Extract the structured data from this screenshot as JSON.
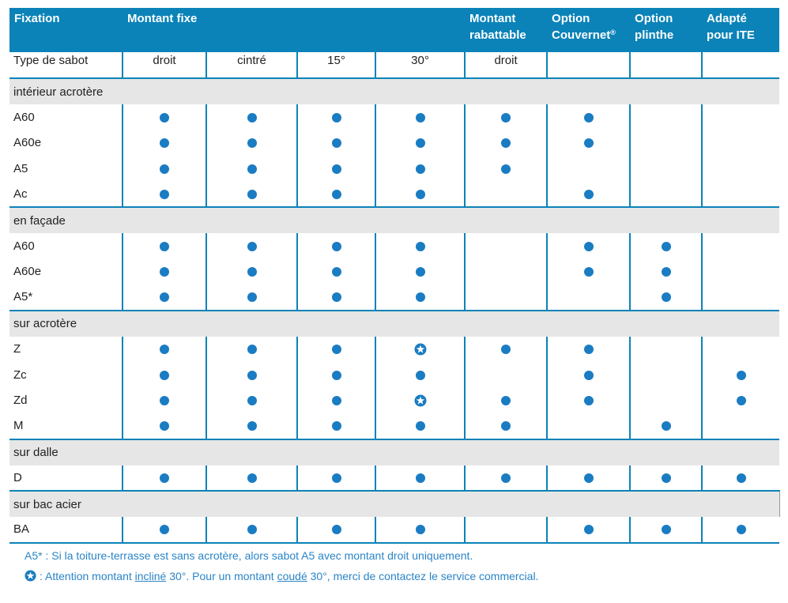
{
  "header": {
    "fixation": "Fixation",
    "montant_fixe": "Montant fixe",
    "montant_rabattable": [
      "Montant",
      "rabattable"
    ],
    "option_couvernet": [
      "Option",
      "Couvernet",
      "®"
    ],
    "option_plinthe": [
      "Option",
      "plinthe"
    ],
    "adapte_ite": [
      "Adapté",
      "pour ITE"
    ]
  },
  "sabot_row": {
    "label": "Type de sabot",
    "values": [
      "droit",
      "cintré",
      "15°",
      "30°",
      "droit",
      "",
      "",
      ""
    ]
  },
  "symbols": {
    "dot": "filled-blue-dot-icon",
    "star": "star-in-circle-icon",
    "dot_color": "#1a7cc2",
    "header_color": "#0b83b8",
    "section_bg": "#e6e6e6"
  },
  "sections": [
    {
      "title": "intérieur acrotère",
      "rows": [
        {
          "label": "A60",
          "cells": [
            "dot",
            "dot",
            "dot",
            "dot",
            "dot",
            "dot",
            "",
            ""
          ]
        },
        {
          "label": "A60e",
          "cells": [
            "dot",
            "dot",
            "dot",
            "dot",
            "dot",
            "dot",
            "",
            ""
          ]
        },
        {
          "label": "A5",
          "cells": [
            "dot",
            "dot",
            "dot",
            "dot",
            "dot",
            "",
            "",
            ""
          ]
        },
        {
          "label": "Ac",
          "cells": [
            "dot",
            "dot",
            "dot",
            "dot",
            "",
            "dot",
            "",
            ""
          ]
        }
      ]
    },
    {
      "title": "en façade",
      "rows": [
        {
          "label": "A60",
          "cells": [
            "dot",
            "dot",
            "dot",
            "dot",
            "",
            "dot",
            "dot",
            ""
          ]
        },
        {
          "label": "A60e",
          "cells": [
            "dot",
            "dot",
            "dot",
            "dot",
            "",
            "dot",
            "dot",
            ""
          ]
        },
        {
          "label": "A5*",
          "cells": [
            "dot",
            "dot",
            "dot",
            "dot",
            "",
            "",
            "dot",
            ""
          ]
        }
      ]
    },
    {
      "title": "sur acrotère",
      "rows": [
        {
          "label": "Z",
          "cells": [
            "dot",
            "dot",
            "dot",
            "star",
            "dot",
            "dot",
            "",
            ""
          ]
        },
        {
          "label": "Zc",
          "cells": [
            "dot",
            "dot",
            "dot",
            "dot",
            "",
            "dot",
            "",
            "dot"
          ]
        },
        {
          "label": "Zd",
          "cells": [
            "dot",
            "dot",
            "dot",
            "star",
            "dot",
            "dot",
            "",
            "dot"
          ]
        },
        {
          "label": "M",
          "cells": [
            "dot",
            "dot",
            "dot",
            "dot",
            "dot",
            "",
            "dot",
            ""
          ]
        }
      ]
    },
    {
      "title": "sur dalle",
      "rows": [
        {
          "label": "D",
          "cells": [
            "dot",
            "dot",
            "dot",
            "dot",
            "dot",
            "dot",
            "dot",
            "dot"
          ]
        }
      ]
    },
    {
      "title": "sur bac acier",
      "rows": [
        {
          "label": "BA",
          "cells": [
            "dot",
            "dot",
            "dot",
            "dot",
            "",
            "dot",
            "dot",
            "dot"
          ]
        }
      ]
    }
  ],
  "notes": {
    "a5_prefix": "A5* : ",
    "a5_text": "Si la toiture-terrasse est sans acrotère, alors sabot A5 avec montant droit uniquement.",
    "star_part1": ": Attention montant ",
    "star_u1": "incliné",
    "star_part2": " 30°. Pour un montant ",
    "star_u2": "coudé",
    "star_part3": " 30°, merci de contactez le service commercial."
  }
}
